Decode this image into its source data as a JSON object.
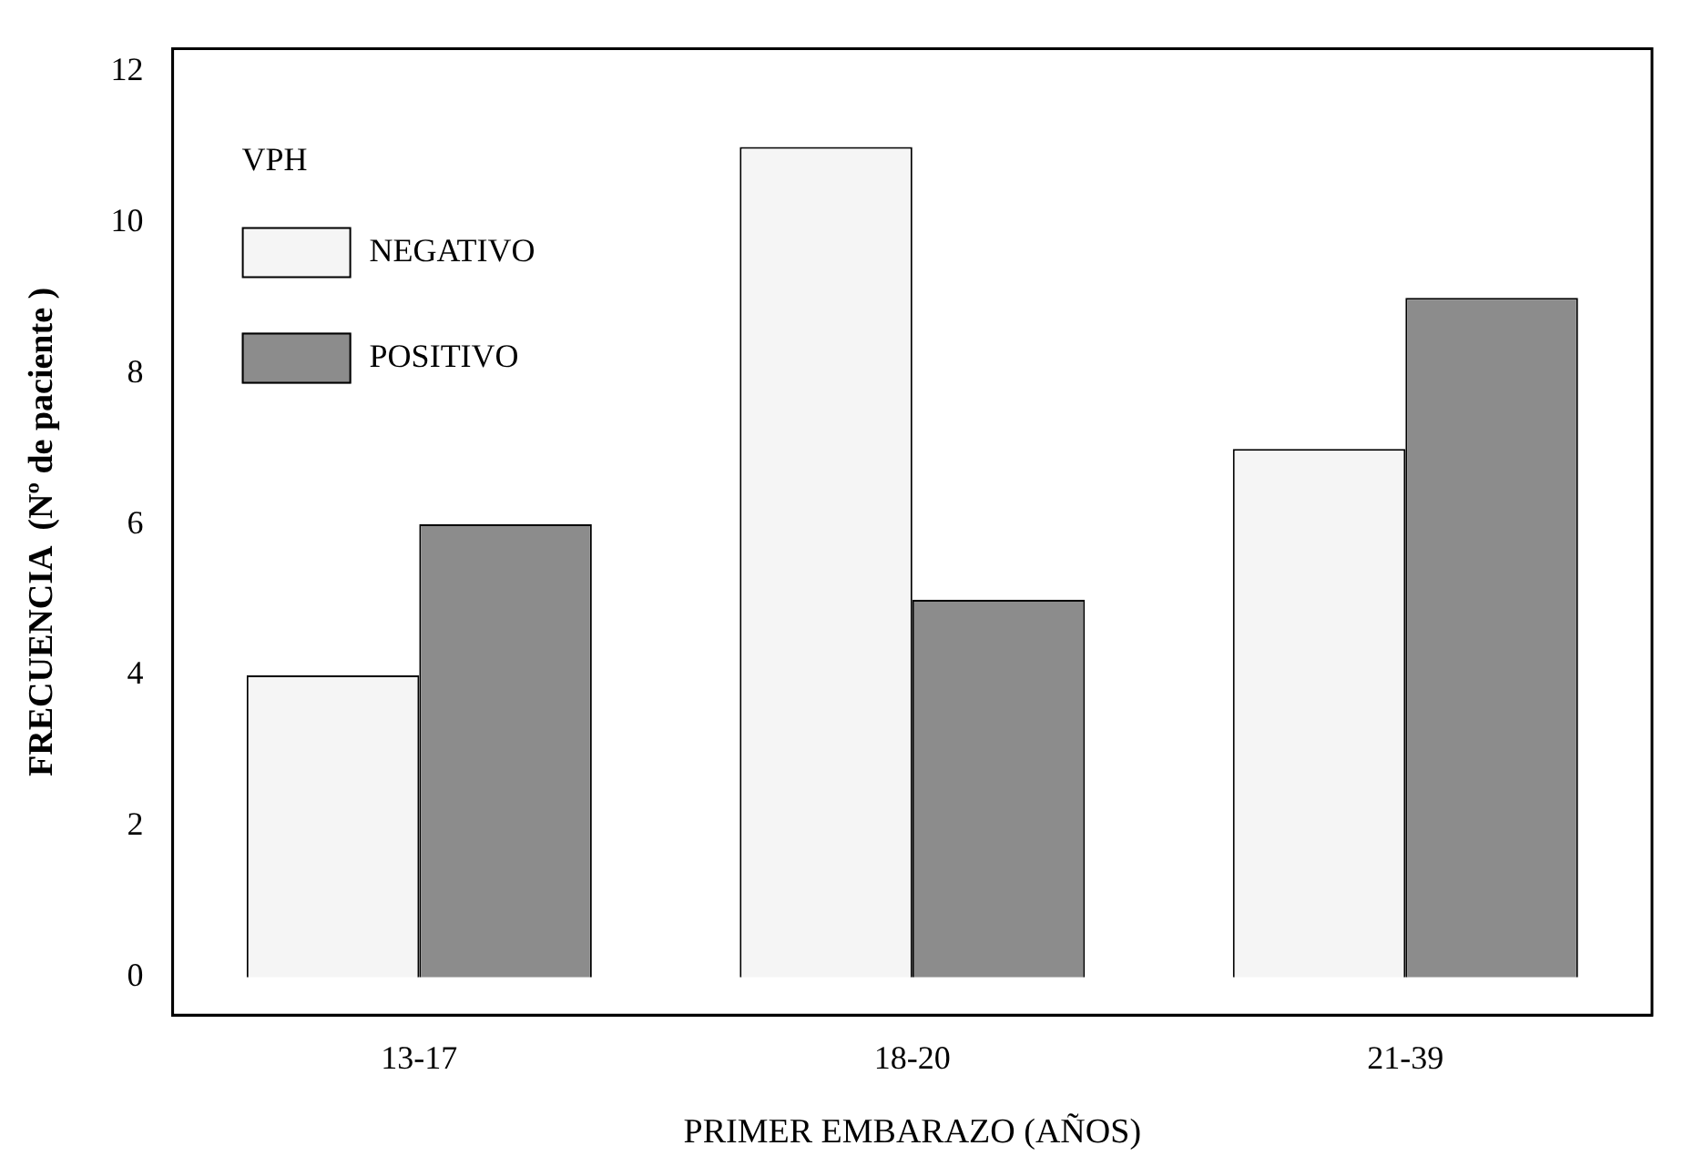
{
  "chart_data": {
    "type": "bar",
    "xlabel": "PRIMER EMBARAZO (AÑOS)",
    "ylabel": "FRECUENCIA  (Nº de paciente )",
    "categories": [
      "13-17",
      "18-20",
      "21-39"
    ],
    "series": [
      {
        "name": "NEGATIVO",
        "color": "#f5f5f5",
        "values": [
          4,
          11,
          7
        ]
      },
      {
        "name": "POSITIVO",
        "color": "#8c8c8c",
        "values": [
          6,
          5,
          9
        ]
      }
    ],
    "legend_title": "VPH",
    "legend": "top left",
    "ylim": [
      -0.5,
      12.3
    ],
    "yticks": [
      0,
      2,
      4,
      6,
      8,
      10,
      12
    ],
    "grid": false
  }
}
